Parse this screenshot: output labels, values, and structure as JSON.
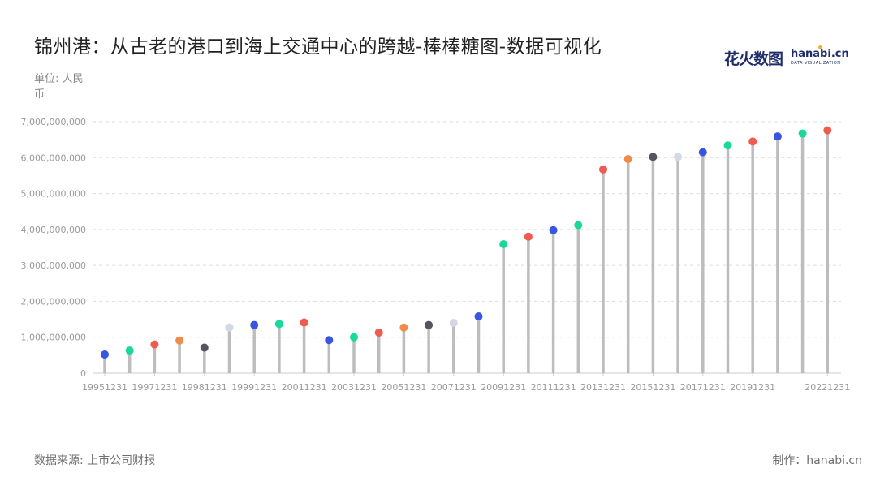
{
  "header": {
    "title": "锦州港：从古老的港口到海上交通中心的跨越-棒棒糖图-数据可视化",
    "unit": "单位: 人民币"
  },
  "footer": {
    "source": "数据来源: 上市公司财报",
    "maker": "制作：hanabi.cn"
  },
  "logo": {
    "cn": "花火数图",
    "en": "hanabi.cn",
    "sub": "DATA VISUALIZATION",
    "dot_color": "#f2b233"
  },
  "colors": {
    "stick": "#bdbdbd",
    "grid": "#dddddd",
    "axis": "#cccccc",
    "palette": [
      "#3a56e0",
      "#19d99a",
      "#f25a4e",
      "#f28a4a",
      "#55555f",
      "#d4d8e4"
    ]
  },
  "chart_data": {
    "type": "lollipop",
    "title": "锦州港：从古老的港口到海上交通中心的跨越-棒棒糖图-数据可视化",
    "ylabel": "单位: 人民币",
    "ylim": [
      0,
      7000000000
    ],
    "y_ticks": [
      0,
      1000000000,
      2000000000,
      3000000000,
      4000000000,
      5000000000,
      6000000000,
      7000000000
    ],
    "y_tick_labels": [
      "0",
      "1,000,000,000",
      "2,000,000,000",
      "3,000,000,000",
      "4,000,000,000",
      "5,000,000,000",
      "6,000,000,000",
      "7,000,000,000"
    ],
    "grid": true,
    "x_tick_labels": [
      "19951231",
      "19971231",
      "19981231",
      "19991231",
      "20011231",
      "20031231",
      "20051231",
      "20071231",
      "20091231",
      "20111231",
      "20131231",
      "20151231",
      "20171231",
      "20191231",
      "20221231"
    ],
    "x_tick_indices": [
      0,
      2,
      4,
      6,
      8,
      10,
      12,
      14,
      16,
      18,
      20,
      22,
      24,
      26,
      29
    ],
    "values": [
      520000000,
      630000000,
      800000000,
      910000000,
      710000000,
      1270000000,
      1340000000,
      1370000000,
      1410000000,
      920000000,
      1000000000,
      1130000000,
      1270000000,
      1340000000,
      1400000000,
      1580000000,
      3590000000,
      3800000000,
      3980000000,
      4120000000,
      5670000000,
      5960000000,
      6020000000,
      6020000000,
      6150000000,
      6340000000,
      6450000000,
      6590000000,
      6670000000,
      6760000000
    ],
    "point_colors": [
      "#3a56e0",
      "#19d99a",
      "#f25a4e",
      "#f28a4a",
      "#55555f",
      "#d4d8e4",
      "#3a56e0",
      "#19d99a",
      "#f25a4e",
      "#3a56e0",
      "#19d99a",
      "#f25a4e",
      "#f28a4a",
      "#55555f",
      "#d4d8e4",
      "#3a56e0",
      "#19d99a",
      "#f25a4e",
      "#3a56e0",
      "#19d99a",
      "#f25a4e",
      "#f28a4a",
      "#55555f",
      "#d4d8e4",
      "#3a56e0",
      "#19d99a",
      "#f25a4e",
      "#3a56e0",
      "#19d99a",
      "#f25a4e"
    ]
  }
}
